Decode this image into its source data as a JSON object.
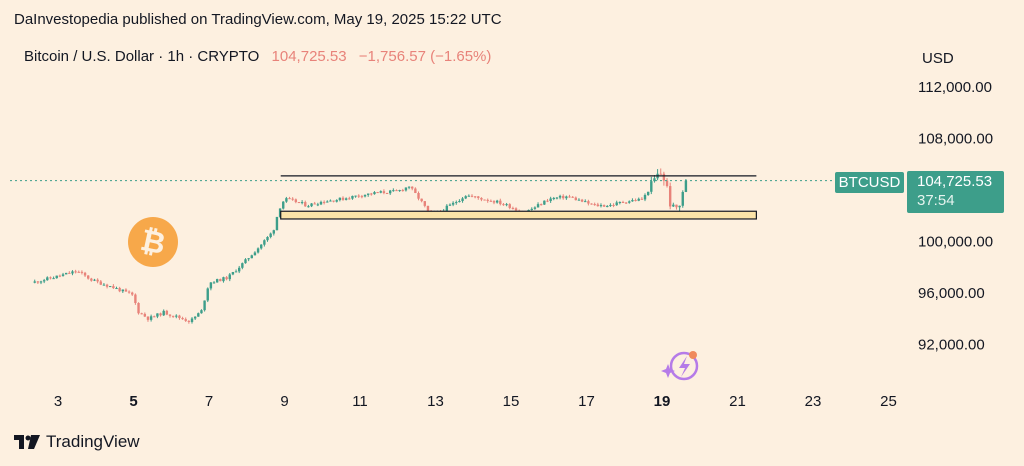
{
  "header": {
    "published": "DaInvestopedia published on TradingView.com, May 19, 2025 15:22 UTC"
  },
  "legend": {
    "symbol": "Bitcoin / U.S. Dollar · 1h · CRYPTO",
    "price": "104,725.53",
    "change": "−1,756.57 (−1.65%)"
  },
  "axis": {
    "currency": "USD"
  },
  "price_tag": {
    "symbol": "BTCUSD",
    "price": "104,725.53",
    "countdown": "37:54"
  },
  "brand": {
    "name": "TradingView"
  },
  "colors": {
    "up": "#3d9e8a",
    "down": "#e8837a",
    "background": "#fdf0e0",
    "bitcoin": "#f7a84a",
    "tag": "#3d9e8a"
  },
  "chart_data": {
    "type": "candlestick",
    "title": "Bitcoin / U.S. Dollar · 1h · CRYPTO",
    "ylabel": "USD",
    "ylim": [
      88900,
      115900
    ],
    "xlim": [
      2.3,
      25.4
    ],
    "y_ticks": [
      112000,
      108000,
      100000,
      96000,
      92000
    ],
    "y_tick_labels": [
      "112,000.00",
      "108,000.00",
      "100,000.00",
      "96,000.00",
      "92,000.00"
    ],
    "x_ticks": [
      3,
      5,
      7,
      9,
      11,
      13,
      15,
      17,
      19,
      21,
      23,
      25
    ],
    "x_tick_labels": [
      "3",
      "5",
      "7",
      "9",
      "11",
      "13",
      "15",
      "17",
      "19",
      "21",
      "23",
      "25"
    ],
    "x_bold_ticks": [
      "5",
      "19"
    ],
    "last_price": 104725.53,
    "resistance": {
      "price": 105100,
      "x_start": 8.9,
      "x_end": 21.5
    },
    "support_zone": {
      "top": 102350,
      "bottom": 101750,
      "x_start": 8.9,
      "x_end": 21.5
    },
    "path": [
      [
        2.3,
        96800
      ],
      [
        3.0,
        97300
      ],
      [
        3.5,
        97700
      ],
      [
        3.9,
        97000
      ],
      [
        4.5,
        96400
      ],
      [
        5.0,
        95800
      ],
      [
        5.1,
        94600
      ],
      [
        5.4,
        94000
      ],
      [
        5.8,
        94500
      ],
      [
        6.2,
        94100
      ],
      [
        6.5,
        93800
      ],
      [
        6.8,
        94600
      ],
      [
        7.0,
        96800
      ],
      [
        7.5,
        97200
      ],
      [
        7.9,
        98300
      ],
      [
        8.3,
        99500
      ],
      [
        8.7,
        100800
      ],
      [
        8.85,
        102500
      ],
      [
        9.0,
        103300
      ],
      [
        9.3,
        103100
      ],
      [
        9.6,
        102800
      ],
      [
        10.0,
        103100
      ],
      [
        10.5,
        103300
      ],
      [
        11.0,
        103600
      ],
      [
        11.5,
        103800
      ],
      [
        12.0,
        103900
      ],
      [
        12.3,
        104300
      ],
      [
        12.6,
        103200
      ],
      [
        12.85,
        102100
      ],
      [
        13.1,
        102300
      ],
      [
        13.5,
        103000
      ],
      [
        13.8,
        103600
      ],
      [
        14.1,
        103400
      ],
      [
        14.6,
        103100
      ],
      [
        15.0,
        102700
      ],
      [
        15.3,
        102200
      ],
      [
        15.6,
        102600
      ],
      [
        16.0,
        103300
      ],
      [
        16.5,
        103500
      ],
      [
        16.9,
        103100
      ],
      [
        17.2,
        102800
      ],
      [
        17.6,
        102800
      ],
      [
        18.0,
        103100
      ],
      [
        18.5,
        103300
      ],
      [
        18.8,
        104800
      ],
      [
        18.95,
        105400
      ],
      [
        19.1,
        104600
      ],
      [
        19.25,
        102500
      ],
      [
        19.45,
        102700
      ],
      [
        19.6,
        104300
      ],
      [
        19.7,
        104726
      ]
    ]
  }
}
